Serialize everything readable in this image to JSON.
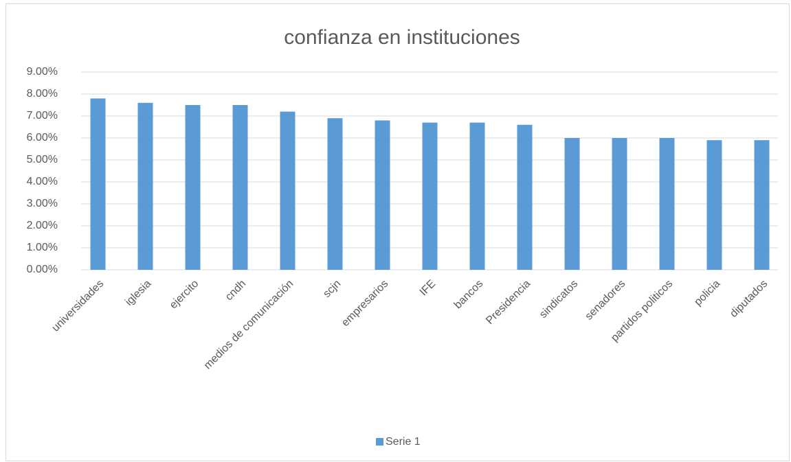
{
  "chart_data": {
    "type": "bar",
    "title": "confianza en instituciones",
    "categories": [
      "universidades",
      "iglesia",
      "ejercito",
      "cndh",
      "medios de comunicación",
      "scjn",
      "empresarios",
      "IFE",
      "bancos",
      "Presidencia",
      "sindicatos",
      "senadores",
      "partidos politicos",
      "policia",
      "diputados"
    ],
    "series": [
      {
        "name": "Serie 1",
        "color": "#5b9bd5",
        "values": [
          7.8,
          7.6,
          7.5,
          7.5,
          7.2,
          6.9,
          6.8,
          6.7,
          6.7,
          6.6,
          6.0,
          6.0,
          6.0,
          5.9,
          5.9
        ]
      }
    ],
    "ylim": [
      0,
      9
    ],
    "yticks": [
      {
        "value": 0,
        "label": "0.00%"
      },
      {
        "value": 1,
        "label": "1.00%"
      },
      {
        "value": 2,
        "label": "2.00%"
      },
      {
        "value": 3,
        "label": "3.00%"
      },
      {
        "value": 4,
        "label": "4.00%"
      },
      {
        "value": 5,
        "label": "5.00%"
      },
      {
        "value": 6,
        "label": "6.00%"
      },
      {
        "value": 7,
        "label": "7.00%"
      },
      {
        "value": 8,
        "label": "8.00%"
      },
      {
        "value": 9,
        "label": "9.00%"
      }
    ],
    "grid": true,
    "legend": "bottom"
  }
}
